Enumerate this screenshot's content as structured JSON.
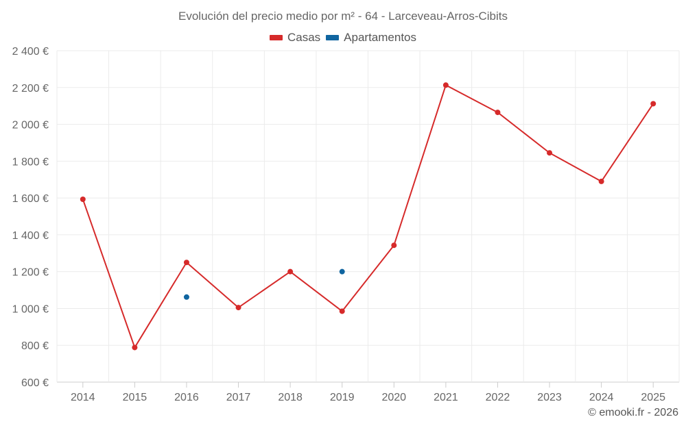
{
  "chart_data": {
    "type": "line",
    "title": "Evolución del precio medio por m² - 64 - Larceveau-Arros-Cibits",
    "categories": [
      "2014",
      "2015",
      "2016",
      "2017",
      "2018",
      "2019",
      "2020",
      "2021",
      "2022",
      "2023",
      "2024",
      "2025"
    ],
    "series": [
      {
        "name": "Casas",
        "color": "#d62a2a",
        "values": [
          1593,
          788,
          1250,
          1005,
          1200,
          985,
          1343,
          2213,
          2065,
          1845,
          1690,
          2112
        ]
      },
      {
        "name": "Apartamentos",
        "color": "#1065a0",
        "values": [
          null,
          null,
          1062,
          null,
          null,
          1200,
          null,
          null,
          null,
          null,
          null,
          null
        ]
      }
    ],
    "ylim": [
      600,
      2400
    ],
    "yticks": [
      600,
      800,
      1000,
      1200,
      1400,
      1600,
      1800,
      2000,
      2200,
      2400
    ],
    "ytick_labels": [
      "600 €",
      "800 €",
      "1 000 €",
      "1 200 €",
      "1 400 €",
      "1 600 €",
      "1 800 €",
      "2 000 €",
      "2 200 €",
      "2 400 €"
    ],
    "xlabel": "",
    "ylabel": "",
    "grid": true,
    "legend": "top-center"
  },
  "credit": "© emooki.fr - 2026"
}
